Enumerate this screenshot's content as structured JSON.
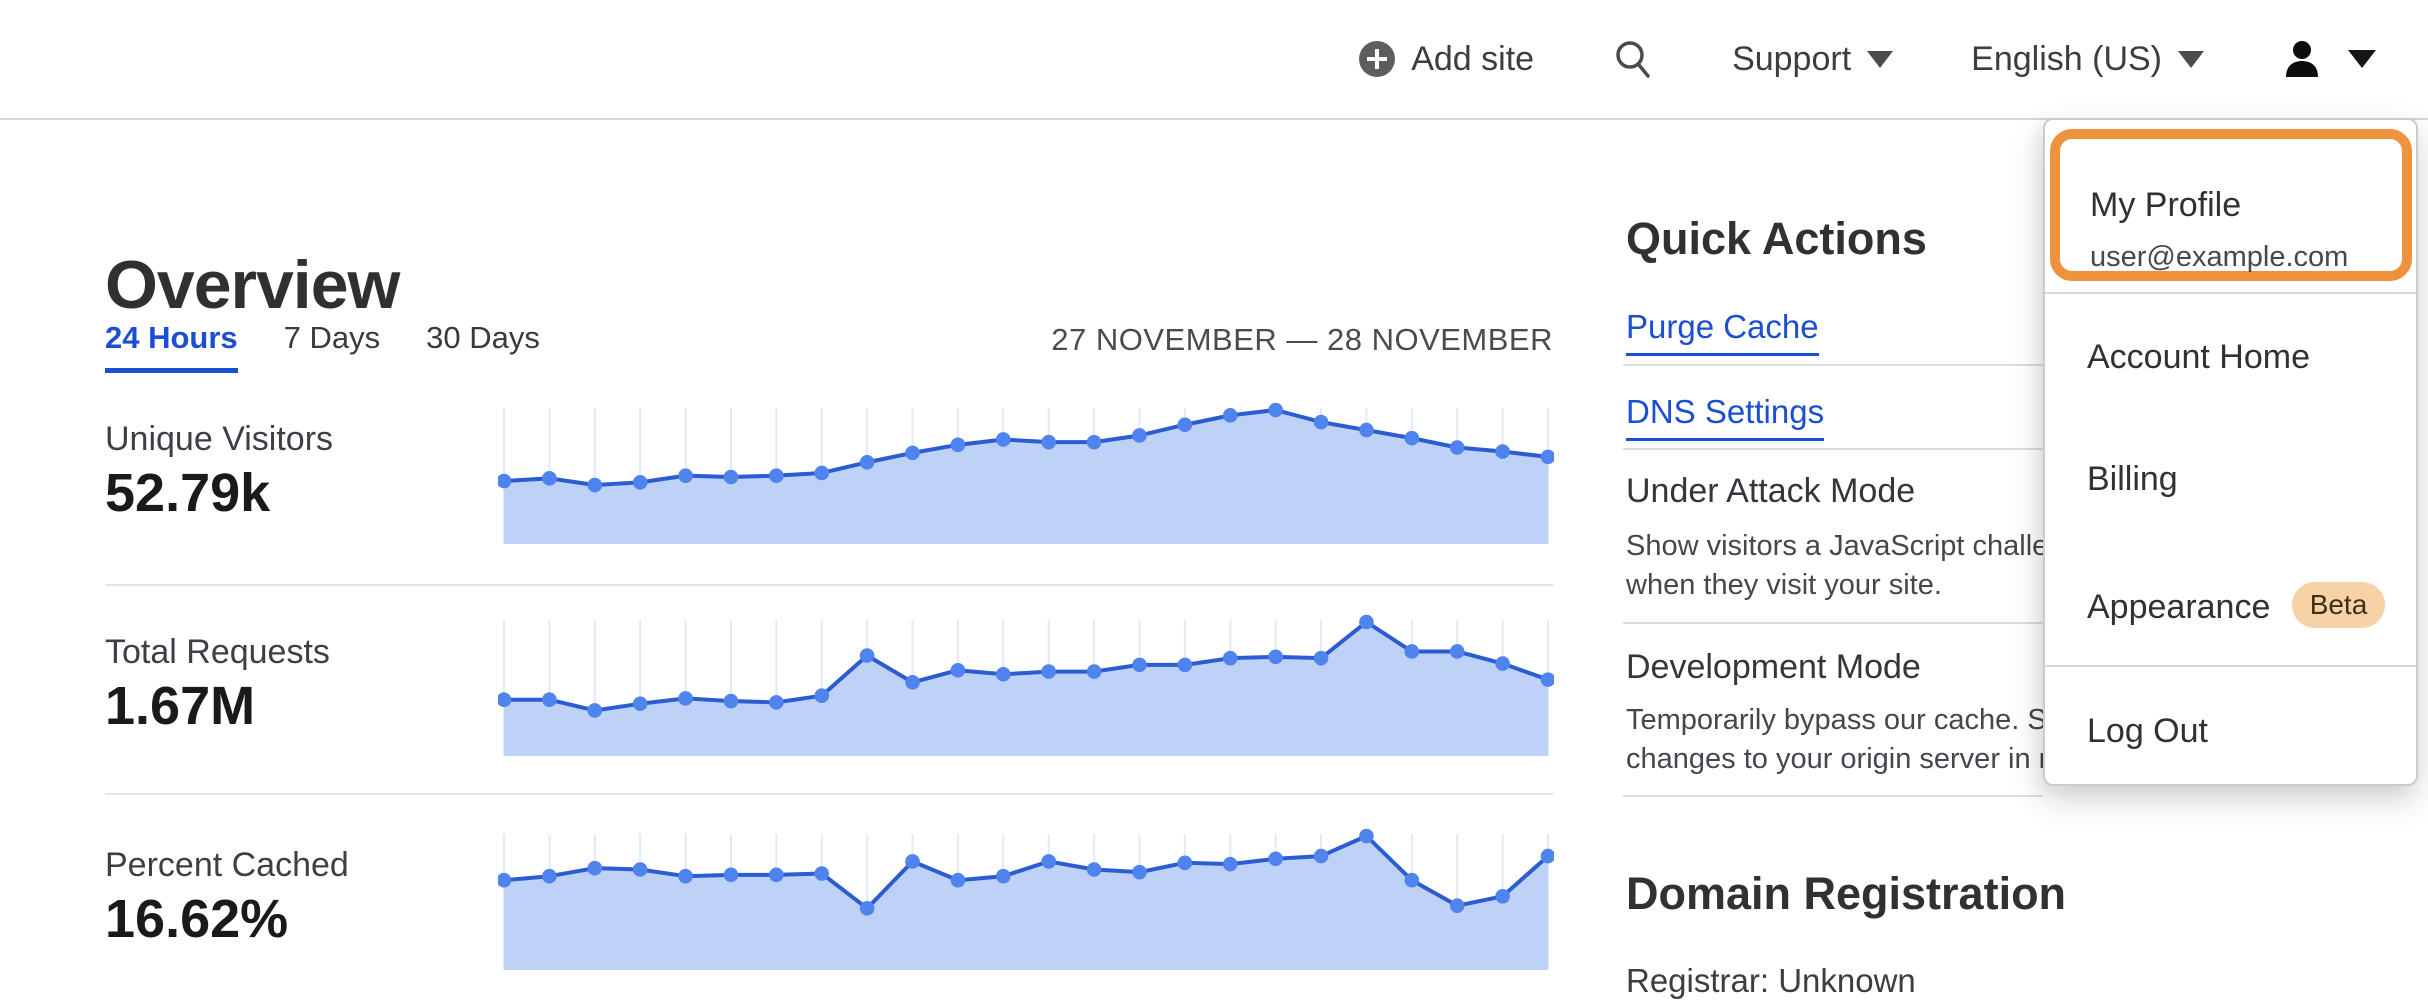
{
  "header": {
    "add_site_label": "Add site",
    "support_label": "Support",
    "language_label": "English (US)"
  },
  "overview": {
    "title": "Overview",
    "tabs": [
      {
        "label": "24 Hours",
        "active": true
      },
      {
        "label": "7 Days",
        "active": false
      },
      {
        "label": "30 Days",
        "active": false
      }
    ],
    "date_range": "27 NOVEMBER — 28 NOVEMBER"
  },
  "metrics": [
    {
      "label": "Unique Visitors",
      "value": "52.79k"
    },
    {
      "label": "Total Requests",
      "value": "1.67M"
    },
    {
      "label": "Percent Cached",
      "value": "16.62%"
    }
  ],
  "chart_data": [
    {
      "type": "area",
      "title": "Unique Visitors (24 Hours)",
      "total_label": "52.79k",
      "x": [
        0,
        1,
        2,
        3,
        4,
        5,
        6,
        7,
        8,
        9,
        10,
        11,
        12,
        13,
        14,
        15,
        16,
        17,
        18,
        19,
        20,
        21,
        22,
        23
      ],
      "relative_values": [
        47,
        49,
        44,
        46,
        51,
        50,
        51,
        53,
        61,
        68,
        74,
        78,
        76,
        76,
        81,
        89,
        96,
        100,
        91,
        85,
        79,
        72,
        69,
        65
      ],
      "ylim": [
        0,
        100
      ],
      "grid": "vertical",
      "legend": false
    },
    {
      "type": "area",
      "title": "Total Requests (24 Hours)",
      "total_label": "1.67M",
      "x": [
        0,
        1,
        2,
        3,
        4,
        5,
        6,
        7,
        8,
        9,
        10,
        11,
        12,
        13,
        14,
        15,
        16,
        17,
        18,
        19,
        20,
        21,
        22,
        23
      ],
      "relative_values": [
        42,
        42,
        34,
        39,
        43,
        41,
        40,
        45,
        75,
        55,
        64,
        61,
        63,
        63,
        68,
        68,
        73,
        74,
        73,
        100,
        78,
        78,
        69,
        57
      ],
      "ylim": [
        0,
        100
      ],
      "grid": "vertical",
      "legend": false
    },
    {
      "type": "area",
      "title": "Percent Cached (24 Hours)",
      "total_label": "16.62%",
      "x": [
        0,
        1,
        2,
        3,
        4,
        5,
        6,
        7,
        8,
        9,
        10,
        11,
        12,
        13,
        14,
        15,
        16,
        17,
        18,
        19,
        20,
        21,
        22,
        23
      ],
      "relative_values": [
        67,
        70,
        76,
        75,
        70,
        71,
        71,
        72,
        46,
        81,
        67,
        70,
        81,
        75,
        73,
        80,
        79,
        83,
        85,
        100,
        67,
        48,
        55,
        85
      ],
      "ylim": [
        0,
        100
      ],
      "grid": "vertical",
      "legend": false
    }
  ],
  "quick_actions": {
    "heading": "Quick Actions",
    "links": [
      {
        "label": "Purge Cache"
      },
      {
        "label": "DNS Settings"
      }
    ],
    "toggles": [
      {
        "label": "Under Attack Mode",
        "desc_lines": [
          "Show visitors a JavaScript challenge",
          "when they visit your site."
        ]
      },
      {
        "label": "Development Mode",
        "desc_lines": [
          "Temporarily bypass our cache. See",
          "changes to your origin server in real time."
        ]
      }
    ]
  },
  "domain_registration": {
    "heading": "Domain Registration",
    "registrar": "Registrar: Unknown"
  },
  "account_menu": {
    "profile": {
      "label": "My Profile",
      "email": "user@example.com"
    },
    "items": [
      {
        "label": "Account Home"
      },
      {
        "label": "Billing"
      },
      {
        "label": "Appearance"
      },
      {
        "label": "Log Out"
      }
    ],
    "beta_badge": "Beta"
  },
  "colors": {
    "accent_blue": "#1b4fd1",
    "chart_line": "#2b5cd2",
    "chart_dot": "#4f83ee",
    "chart_fill": "#bdd2f6",
    "chart_grid": "#e2eaf7",
    "highlight_orange": "#ef923d",
    "beta_bg": "#f8d2a7"
  }
}
